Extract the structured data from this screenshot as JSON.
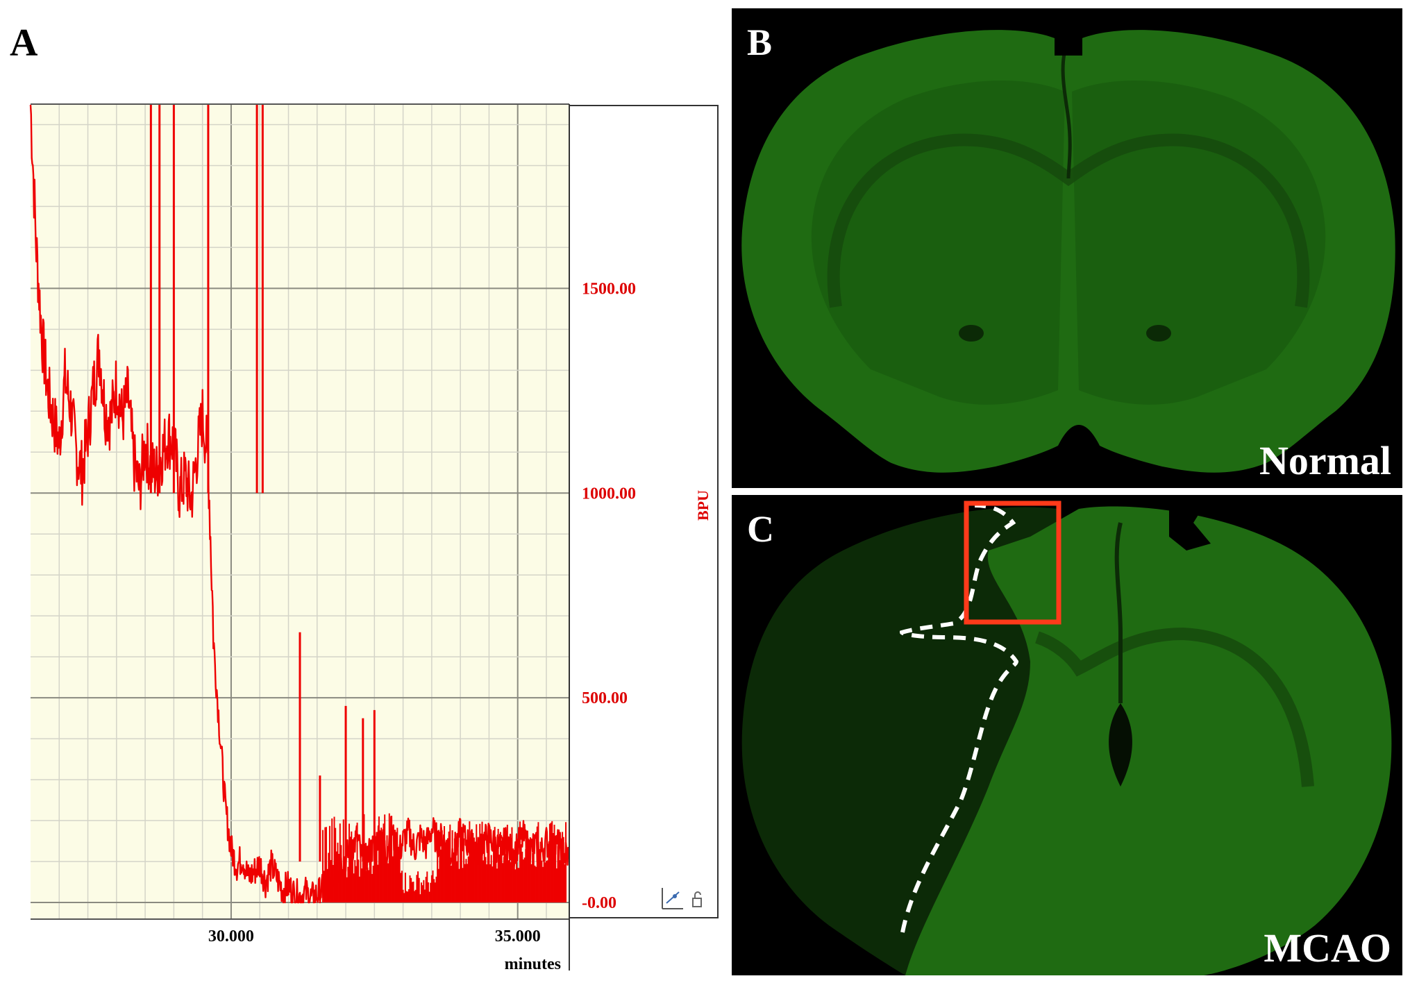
{
  "panels": {
    "a": {
      "letter": "A"
    },
    "b": {
      "letter": "B",
      "label": "Normal"
    },
    "c": {
      "letter": "C",
      "label": "MCAO"
    }
  },
  "colors": {
    "trace": "#ee0000",
    "axis_text": "#dd0000",
    "plot_background": "#fcfce6",
    "tissue_green": "#1f6b12",
    "roi_box": "#ff3a1a",
    "infarct_outline": "#ffffff"
  },
  "icons": [
    "axis-settings-icon",
    "lock-icon"
  ],
  "chart_data": {
    "type": "line",
    "title": "",
    "xlabel": "minutes",
    "ylabel": "BPU",
    "xlim": [
      26.5,
      35.9
    ],
    "ylim": [
      0,
      1950
    ],
    "x_ticks": [
      30,
      35
    ],
    "x_tick_labels": [
      "30.000",
      "35.000"
    ],
    "y_ticks": [
      0,
      500,
      1000,
      1500
    ],
    "y_tick_labels": [
      "-0.00",
      "500.00",
      "1000.00",
      "1500.00"
    ],
    "grid": true,
    "series": [
      {
        "x": [
          26.5,
          26.6,
          26.7,
          26.8,
          26.9,
          27.0,
          27.1,
          27.2,
          27.3,
          27.4,
          27.5,
          27.6,
          27.7,
          27.8,
          27.9,
          28.0,
          28.1,
          28.2,
          28.3,
          28.4,
          28.5,
          28.6,
          28.7,
          28.8,
          28.9,
          29.0,
          29.1,
          29.2,
          29.3,
          29.4,
          29.5,
          29.6,
          29.7,
          29.8,
          29.9,
          30.0,
          30.1,
          30.2,
          30.3,
          30.4,
          30.5,
          30.6,
          30.7,
          30.8,
          30.9,
          31.0,
          31.1,
          31.2,
          31.3,
          31.4,
          31.5,
          31.6,
          31.7,
          31.8,
          31.9,
          32.0,
          32.1,
          32.2,
          32.3,
          32.4,
          32.5,
          32.6,
          32.7,
          32.8,
          32.9,
          33.0,
          33.1,
          33.2,
          33.3,
          33.4,
          33.5,
          33.6,
          33.7,
          33.8,
          33.9,
          34.0,
          34.1,
          34.2,
          34.3,
          34.4,
          34.5,
          34.6,
          34.7,
          34.8,
          34.9,
          35.0,
          35.1,
          35.2,
          35.3,
          35.4,
          35.5,
          35.6,
          35.7,
          35.8,
          35.9
        ],
        "values": [
          1950,
          1600,
          1380,
          1250,
          1180,
          1120,
          1280,
          1210,
          1100,
          1050,
          1150,
          1260,
          1350,
          1200,
          1180,
          1270,
          1180,
          1240,
          1080,
          1010,
          1120,
          1060,
          1050,
          1100,
          1140,
          1120,
          1000,
          1040,
          980,
          1090,
          1190,
          1080,
          620,
          420,
          230,
          130,
          90,
          110,
          60,
          75,
          95,
          50,
          90,
          60,
          30,
          40,
          20,
          15,
          25,
          10,
          20,
          30,
          40,
          60,
          90,
          110,
          130,
          160,
          90,
          120,
          140,
          170,
          120,
          180,
          110,
          150,
          170,
          130,
          160,
          140,
          180,
          150,
          160,
          110,
          130,
          170,
          150,
          140,
          120,
          150,
          160,
          140,
          130,
          150,
          120,
          140,
          160,
          130,
          140,
          120,
          150,
          130,
          140,
          120,
          110
        ]
      }
    ],
    "spikes": [
      {
        "x": 28.6,
        "y": 1950
      },
      {
        "x": 28.75,
        "y": 1950
      },
      {
        "x": 29.0,
        "y": 1950
      },
      {
        "x": 29.6,
        "y": 1950
      },
      {
        "x": 30.45,
        "y": 1950
      },
      {
        "x": 30.55,
        "y": 1950
      },
      {
        "x": 31.2,
        "y": 660
      },
      {
        "x": 31.55,
        "y": 310
      },
      {
        "x": 32.0,
        "y": 480
      },
      {
        "x": 32.3,
        "y": 450
      },
      {
        "x": 32.5,
        "y": 470
      }
    ]
  }
}
